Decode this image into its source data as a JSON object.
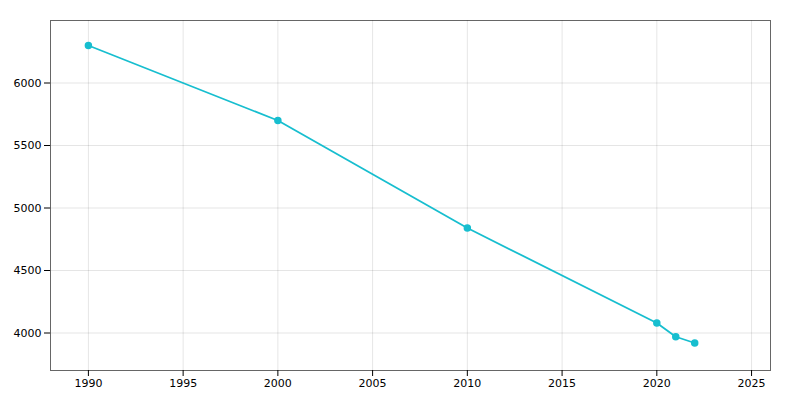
{
  "chart_data": {
    "type": "line",
    "x": [
      1990,
      2000,
      2010,
      2020,
      2021,
      2022
    ],
    "values": [
      6300,
      5700,
      4840,
      4080,
      3970,
      3920
    ],
    "color": "#17becf",
    "marker": "circle",
    "line_style": "solid",
    "xlim": [
      1988,
      2026
    ],
    "xticks": [
      1990,
      1995,
      2000,
      2005,
      2010,
      2015,
      2020,
      2025
    ],
    "ylim": [
      3700,
      6500
    ],
    "yticks": [
      4000,
      4500,
      5000,
      5500,
      6000
    ],
    "grid": true
  }
}
